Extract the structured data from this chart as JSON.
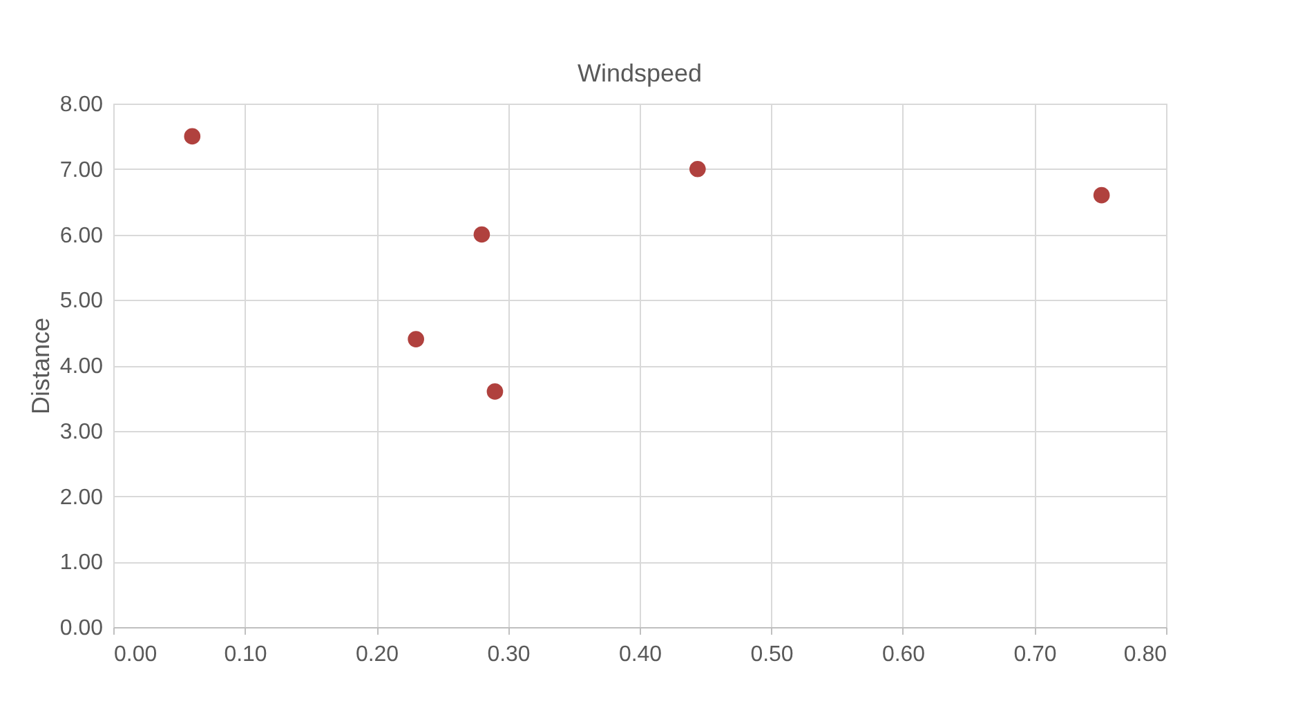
{
  "chart_data": {
    "type": "scatter",
    "title": "Windspeed",
    "ylabel": "Distance",
    "x": [
      0.06,
      0.28,
      0.23,
      0.29,
      0.444,
      0.751
    ],
    "series": [
      {
        "color": "#b0413e",
        "values": [
          7.5,
          6.0,
          4.4,
          3.6,
          7.0,
          6.6
        ]
      }
    ],
    "xlim": [
      0,
      0.8
    ],
    "ylim": [
      0,
      8
    ],
    "xticks": [
      {
        "value": 0,
        "label": "0.00"
      },
      {
        "value": 0.1,
        "label": "0.10"
      },
      {
        "value": 0.2,
        "label": "0.20"
      },
      {
        "value": 0.3,
        "label": "0.30"
      },
      {
        "value": 0.4,
        "label": "0.40"
      },
      {
        "value": 0.5,
        "label": "0.50"
      },
      {
        "value": 0.6,
        "label": "0.60"
      },
      {
        "value": 0.7,
        "label": "0.70"
      },
      {
        "value": 0.8,
        "label": "0.80"
      }
    ],
    "yticks": [
      {
        "value": 0,
        "label": "0.00"
      },
      {
        "value": 1,
        "label": "1.00"
      },
      {
        "value": 2,
        "label": "2.00"
      },
      {
        "value": 3,
        "label": "3.00"
      },
      {
        "value": 4,
        "label": "4.00"
      },
      {
        "value": 5,
        "label": "5.00"
      },
      {
        "value": 6,
        "label": "6.00"
      },
      {
        "value": 7,
        "label": "7.00"
      },
      {
        "value": 8,
        "label": "8.00"
      }
    ],
    "grid": true,
    "marker": "circle"
  }
}
